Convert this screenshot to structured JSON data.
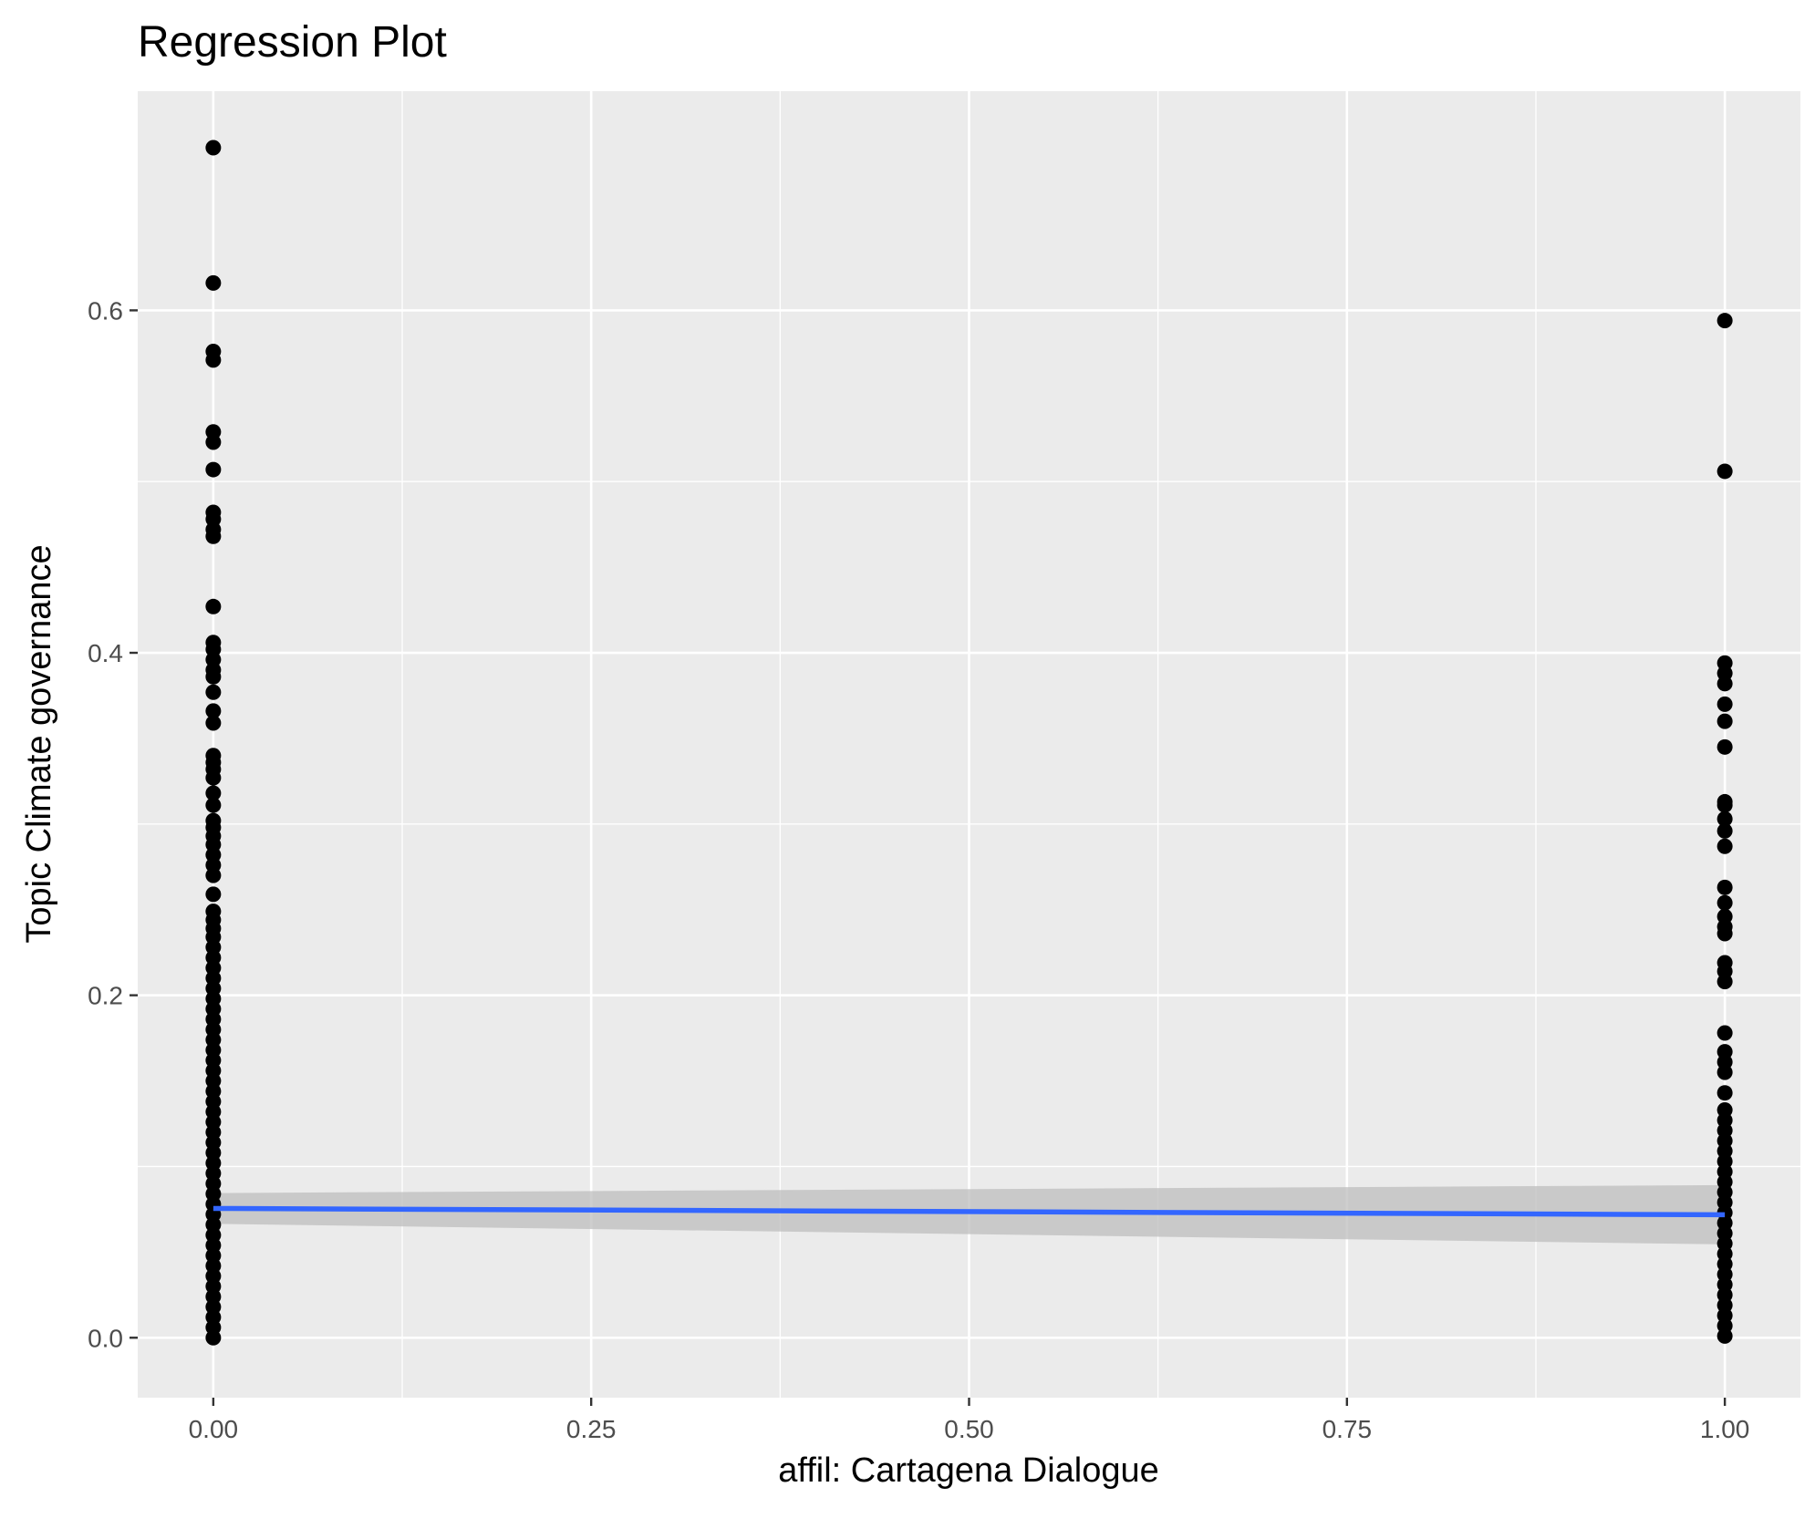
{
  "chart_data": {
    "type": "scatter",
    "title": "Regression Plot",
    "xlabel": "affil: Cartagena Dialogue",
    "ylabel": "Topic Climate governance",
    "xlim": [
      -0.05,
      1.05
    ],
    "ylim": [
      -0.035,
      0.728
    ],
    "x_ticks": [
      0.0,
      0.25,
      0.5,
      0.75,
      1.0
    ],
    "x_tick_labels": [
      "0.00",
      "0.25",
      "0.50",
      "0.75",
      "1.00"
    ],
    "y_ticks": [
      0.0,
      0.2,
      0.4,
      0.6
    ],
    "y_tick_labels": [
      "0.0",
      "0.2",
      "0.4",
      "0.6"
    ],
    "grid": true,
    "legend": "none",
    "colors": {
      "panel": "#ebebeb",
      "grid": "#ffffff",
      "points": "#000000",
      "fit_line": "#3366ff",
      "ci_band": "#bdbdbd"
    },
    "series": [
      {
        "x": 0,
        "values": [
          0.695,
          0.616,
          0.576,
          0.571,
          0.529,
          0.523,
          0.507,
          0.482,
          0.478,
          0.472,
          0.468,
          0.427,
          0.406,
          0.402,
          0.396,
          0.39,
          0.386,
          0.377,
          0.366,
          0.359,
          0.34,
          0.336,
          0.332,
          0.327,
          0.318,
          0.311,
          0.302,
          0.298,
          0.293,
          0.288,
          0.282,
          0.276,
          0.27,
          0.259,
          0.249,
          0.244,
          0.239,
          0.234,
          0.228,
          0.222,
          0.216,
          0.21,
          0.204,
          0.198,
          0.192,
          0.186,
          0.18,
          0.174,
          0.168,
          0.162,
          0.156,
          0.15,
          0.144,
          0.138,
          0.132,
          0.126,
          0.12,
          0.114,
          0.108,
          0.102,
          0.096,
          0.09,
          0.084,
          0.078,
          0.072,
          0.066,
          0.06,
          0.054,
          0.048,
          0.042,
          0.036,
          0.03,
          0.024,
          0.018,
          0.012,
          0.006,
          0.0
        ]
      },
      {
        "x": 1,
        "values": [
          0.594,
          0.506,
          0.394,
          0.388,
          0.382,
          0.37,
          0.36,
          0.345,
          0.313,
          0.311,
          0.303,
          0.296,
          0.287,
          0.263,
          0.254,
          0.246,
          0.24,
          0.236,
          0.219,
          0.214,
          0.208,
          0.178,
          0.167,
          0.161,
          0.155,
          0.143,
          0.133,
          0.127,
          0.121,
          0.115,
          0.109,
          0.103,
          0.097,
          0.091,
          0.085,
          0.079,
          0.073,
          0.067,
          0.061,
          0.055,
          0.049,
          0.043,
          0.037,
          0.031,
          0.025,
          0.019,
          0.013,
          0.007,
          0.001
        ]
      }
    ],
    "fit": {
      "x": [
        0,
        1
      ],
      "y": [
        0.0755,
        0.0718
      ],
      "ci_lower": [
        0.0665,
        0.0545
      ],
      "ci_upper": [
        0.0845,
        0.0891
      ]
    }
  }
}
